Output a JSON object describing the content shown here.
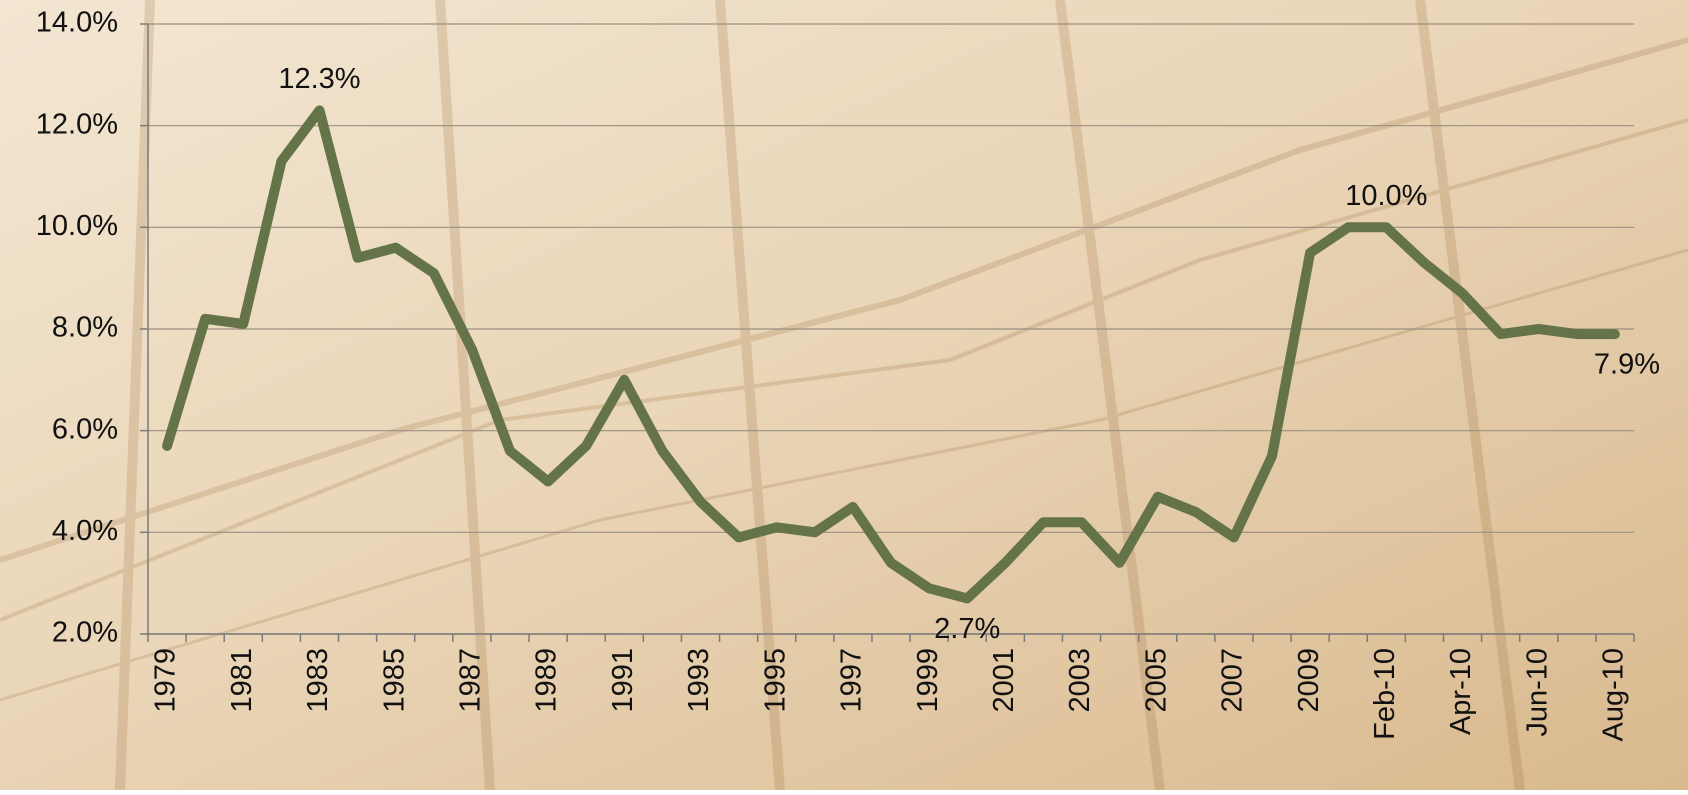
{
  "chart_data": {
    "type": "line",
    "categories": [
      "1979",
      null,
      "1981",
      null,
      "1983",
      null,
      "1985",
      null,
      "1987",
      null,
      "1989",
      null,
      "1991",
      null,
      "1993",
      null,
      "1995",
      null,
      "1997",
      null,
      "1999",
      null,
      "2001",
      null,
      "2003",
      null,
      "2005",
      null,
      "2007",
      null,
      "2009",
      null,
      "Feb-10",
      null,
      "Apr-10",
      null,
      "Jun-10",
      null,
      "Aug-10"
    ],
    "values": [
      5.7,
      8.2,
      8.1,
      11.3,
      12.3,
      9.4,
      9.6,
      9.1,
      7.6,
      5.6,
      5.0,
      5.7,
      7.0,
      5.6,
      4.6,
      3.9,
      4.1,
      4.0,
      4.5,
      3.4,
      2.9,
      2.7,
      3.4,
      4.2,
      4.2,
      3.4,
      4.7,
      4.4,
      3.9,
      5.5,
      9.5,
      10.0,
      10.0,
      9.3,
      8.7,
      7.9,
      8.0,
      7.9,
      7.9
    ],
    "value_labels": [
      null,
      null,
      null,
      null,
      "12.3%",
      null,
      null,
      null,
      null,
      null,
      null,
      null,
      null,
      null,
      null,
      null,
      null,
      null,
      null,
      null,
      null,
      "2.7%",
      null,
      null,
      null,
      null,
      null,
      null,
      null,
      null,
      null,
      null,
      "10.0%",
      null,
      null,
      null,
      null,
      null,
      "7.9%"
    ],
    "color": "#657349",
    "ylim": [
      2,
      14
    ],
    "yticks": [
      {
        "value": 2,
        "label": "2.0%"
      },
      {
        "value": 4,
        "label": "4.0%"
      },
      {
        "value": 6,
        "label": "6.0%"
      },
      {
        "value": 8,
        "label": "8.0%"
      },
      {
        "value": 10,
        "label": "10.0%"
      },
      {
        "value": 12,
        "label": "12.0%"
      },
      {
        "value": 14,
        "label": "14.0%"
      }
    ],
    "grid": true
  }
}
